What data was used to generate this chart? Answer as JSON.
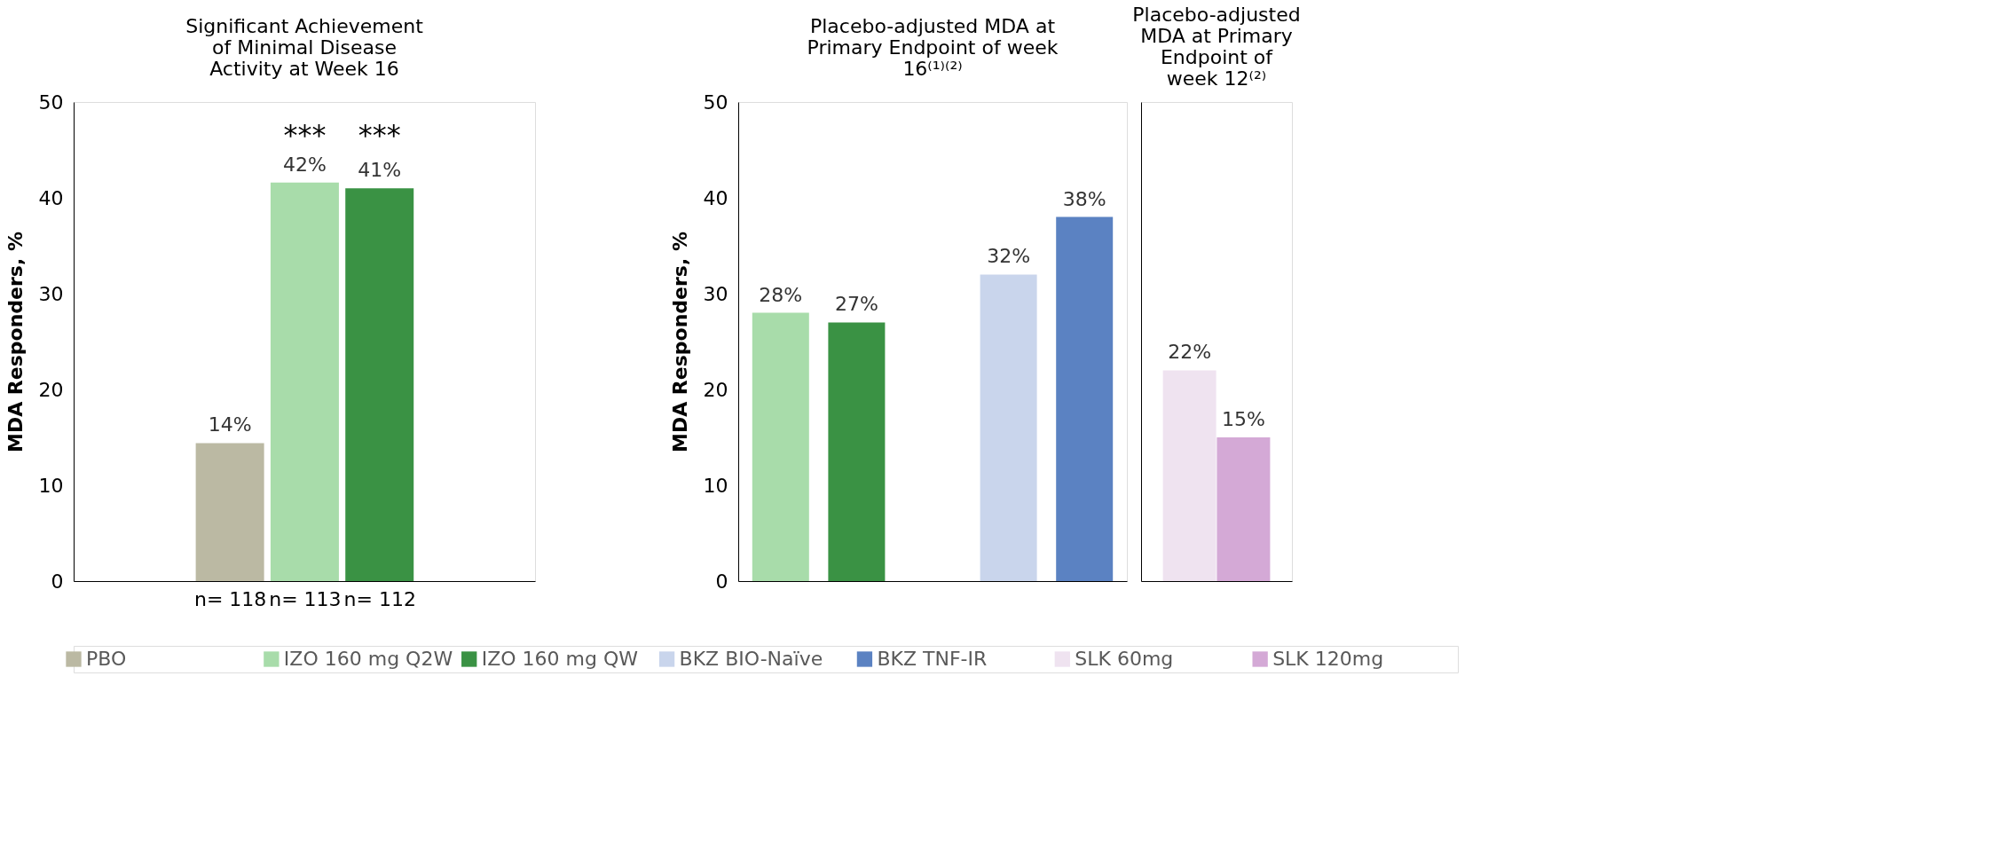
{
  "chart_data": [
    {
      "type": "bar",
      "title": "Significant Achievement of Minimal Disease Activity at Week 16",
      "ylabel": "MDA Responders, %",
      "categories": [
        "n= 118",
        "n= 113",
        "n= 112"
      ],
      "ylim": [
        0,
        50
      ],
      "yticks": [
        0,
        10,
        20,
        30,
        40,
        50
      ],
      "grid": false,
      "legend": "bottom",
      "series": [
        {
          "name": "PBO",
          "color": "#bbb9a3",
          "values": [
            14.4,
            null,
            null
          ],
          "value_labels": [
            "14%",
            null,
            null
          ]
        },
        {
          "name": "IZO 160 mg Q2W",
          "color": "#a8dcaa",
          "values": [
            null,
            41.6,
            null
          ],
          "value_labels": [
            null,
            "42%",
            null
          ]
        },
        {
          "name": "IZO 160 mg QW",
          "color": "#3a9244",
          "values": [
            null,
            null,
            41.0
          ],
          "value_labels": [
            null,
            null,
            "41%"
          ]
        }
      ],
      "annotations": [
        "***",
        "***"
      ]
    },
    {
      "type": "bar",
      "title": "Placebo-adjusted MDA at Primary Endpoint of week 16⁽¹⁾⁽²⁾",
      "ylabel": "MDA Responders, %",
      "categories": [
        null,
        null,
        null,
        null,
        null
      ],
      "ylim": [
        0,
        50
      ],
      "yticks": [
        0,
        10,
        20,
        30,
        40,
        50
      ],
      "grid": false,
      "legend": "bottom",
      "tick_labels": "y",
      "series": [
        {
          "color": "#a8dcaa",
          "values": [
            28,
            null,
            null,
            null,
            null
          ],
          "value_labels": [
            "28%",
            null,
            null,
            null,
            null
          ]
        },
        {
          "color": "#3a9244",
          "values": [
            null,
            27,
            null,
            null,
            null
          ],
          "value_labels": [
            null,
            "27%",
            null,
            null,
            null
          ]
        },
        {
          "name": "BKZ BIO-Naïve",
          "color": "#c9d5ec",
          "values": [
            null,
            null,
            null,
            32,
            null
          ],
          "value_labels": [
            null,
            null,
            null,
            "32%",
            null
          ]
        },
        {
          "name": "BKZ TNF-IR",
          "color": "#5b82c2",
          "values": [
            null,
            null,
            null,
            null,
            38
          ],
          "value_labels": [
            null,
            null,
            null,
            null,
            "38%"
          ]
        }
      ]
    },
    {
      "type": "bar",
      "title": "Placebo-adjusted MDA at Primary Endpoint of week 12⁽²⁾",
      "categories": [
        null
      ],
      "ylim": [
        0,
        50
      ],
      "grid": false,
      "legend": "bottom",
      "tick_labels": false,
      "series": [
        {
          "name": "SLK 60mg",
          "color": "#efe3f0",
          "values": [
            22
          ],
          "value_labels": [
            "22%"
          ]
        },
        {
          "name": "SLK 120mg",
          "color": "#d4a9d6",
          "values": [
            15
          ],
          "value_labels": [
            "15%"
          ]
        }
      ]
    }
  ]
}
